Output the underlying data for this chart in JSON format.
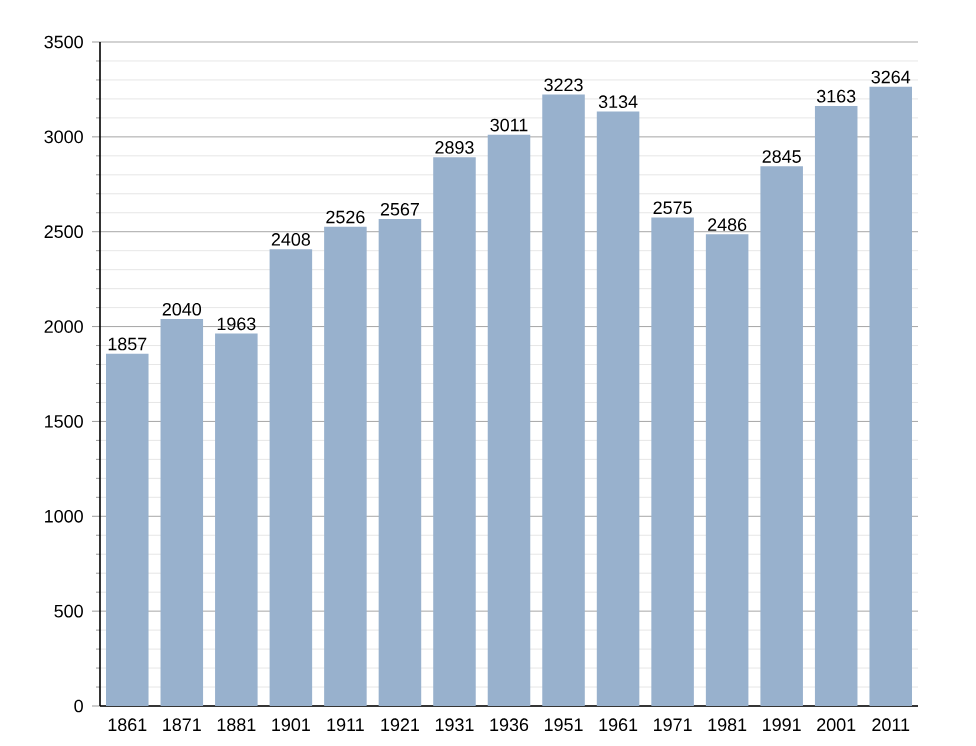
{
  "chart_data": {
    "type": "bar",
    "categories": [
      "1861",
      "1871",
      "1881",
      "1901",
      "1911",
      "1921",
      "1931",
      "1936",
      "1951",
      "1961",
      "1971",
      "1981",
      "1991",
      "2001",
      "2011"
    ],
    "values": [
      1857,
      2040,
      1963,
      2408,
      2526,
      2567,
      2893,
      3011,
      3223,
      3134,
      2575,
      2486,
      2845,
      3163,
      3264
    ],
    "color": "#98b1cd",
    "ylim": [
      0,
      3500
    ],
    "yticks": [
      0,
      500,
      1000,
      1500,
      2000,
      2500,
      3000,
      3500
    ],
    "grid": "y",
    "data_labels": true
  }
}
